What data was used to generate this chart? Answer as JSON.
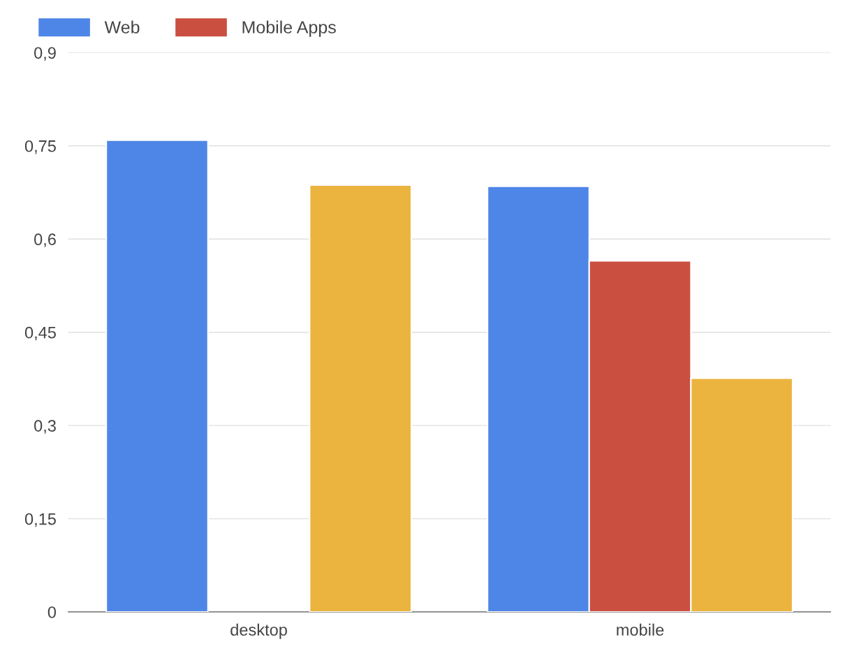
{
  "chart_data": {
    "type": "bar",
    "categories": [
      "desktop",
      "mobile"
    ],
    "series": [
      {
        "name": "Web",
        "color": "#4e86e8",
        "values": [
          0.759,
          0.685
        ]
      },
      {
        "name": "Mobile Apps",
        "color": "#cb4f40",
        "values": [
          null,
          0.565
        ]
      },
      {
        "color": "#ebb43e",
        "values": [
          0.687,
          0.376
        ]
      }
    ],
    "ylim": [
      0,
      0.9
    ],
    "yticks": [
      {
        "value": 0,
        "label": "0"
      },
      {
        "value": 0.15,
        "label": "0,15"
      },
      {
        "value": 0.3,
        "label": "0,3"
      },
      {
        "value": 0.45,
        "label": "0,45"
      },
      {
        "value": 0.6,
        "label": "0,6"
      },
      {
        "value": 0.75,
        "label": "0,75"
      },
      {
        "value": 0.9,
        "label": "0,9"
      }
    ],
    "grid": "y",
    "legend": "top left"
  }
}
